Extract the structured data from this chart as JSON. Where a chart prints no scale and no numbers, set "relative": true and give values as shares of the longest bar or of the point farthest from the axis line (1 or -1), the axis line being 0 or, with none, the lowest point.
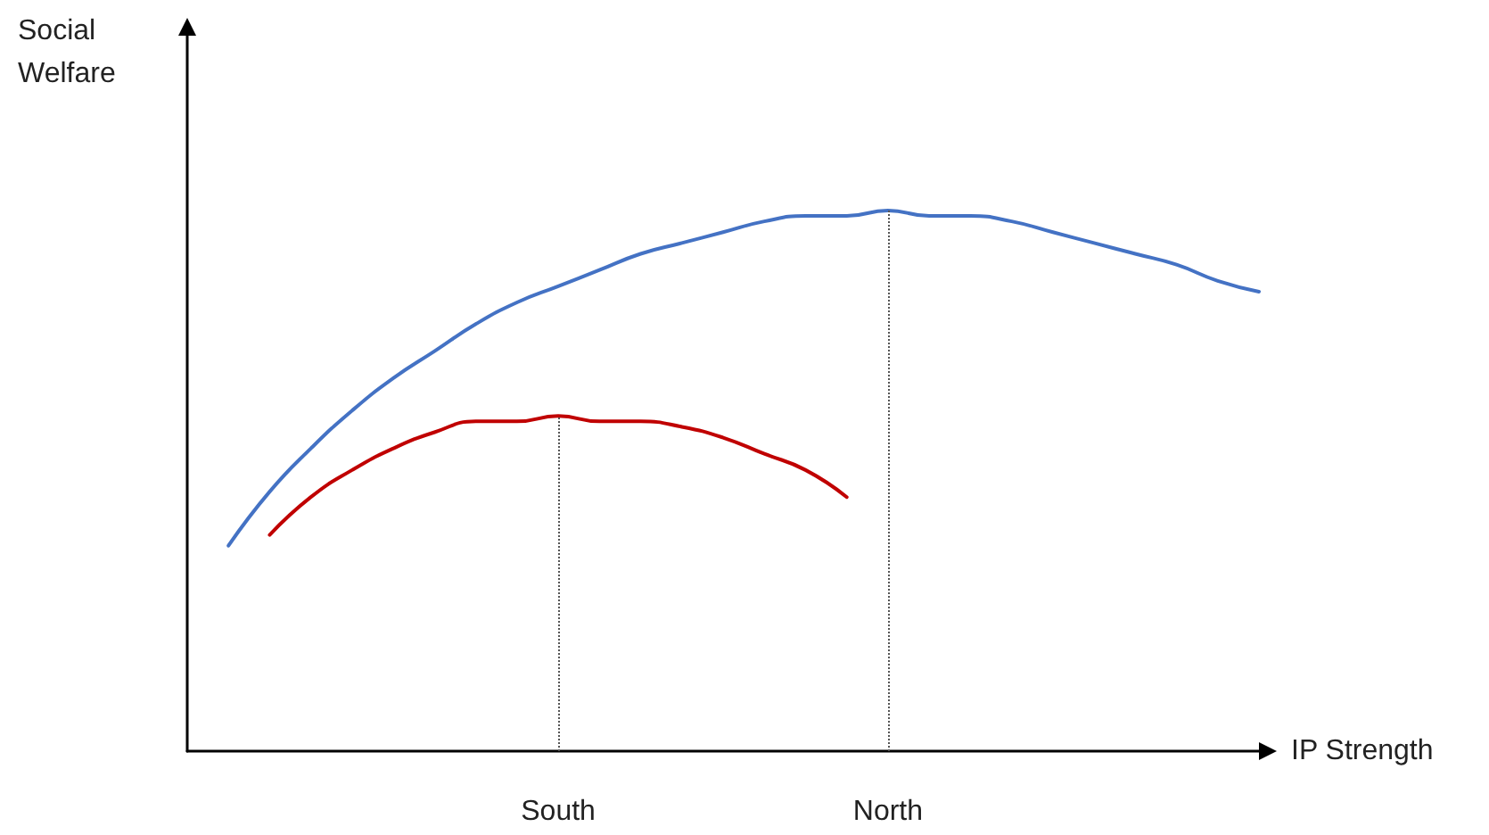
{
  "chart_data": {
    "type": "line",
    "relative": true,
    "xlabel": "IP Strength",
    "ylabel": "Social Welfare",
    "categories": [
      null,
      null,
      null,
      null,
      null,
      null,
      null,
      null,
      null,
      "South",
      null,
      null,
      null,
      null,
      null,
      null,
      null,
      "North",
      null,
      null,
      null,
      null,
      null,
      null,
      null,
      null,
      null
    ],
    "series": [
      {
        "color": "#4472c4",
        "values": [
          null,
          0.38,
          0.48,
          0.56,
          0.63,
          0.69,
          0.74,
          0.79,
          0.83,
          0.86,
          0.89,
          0.92,
          0.94,
          0.96,
          0.98,
          0.99,
          0.99,
          1.0,
          0.99,
          0.99,
          0.98,
          0.96,
          0.94,
          0.92,
          0.9,
          0.87,
          0.85
        ]
      },
      {
        "color": "#c00000",
        "values": [
          null,
          null,
          0.4,
          0.47,
          0.52,
          0.56,
          0.59,
          0.61,
          0.61,
          0.62,
          0.61,
          0.61,
          0.6,
          0.58,
          0.55,
          0.52,
          0.47,
          null,
          null,
          null,
          null,
          null,
          null,
          null,
          null,
          null,
          null
        ]
      }
    ],
    "ref_lines": [
      {
        "axis": "x",
        "value": "South",
        "color": "#555555",
        "line_style": "dotted"
      },
      {
        "axis": "x",
        "value": "North",
        "color": "#555555",
        "line_style": "dotted"
      }
    ],
    "grid": false,
    "marker": "none"
  }
}
